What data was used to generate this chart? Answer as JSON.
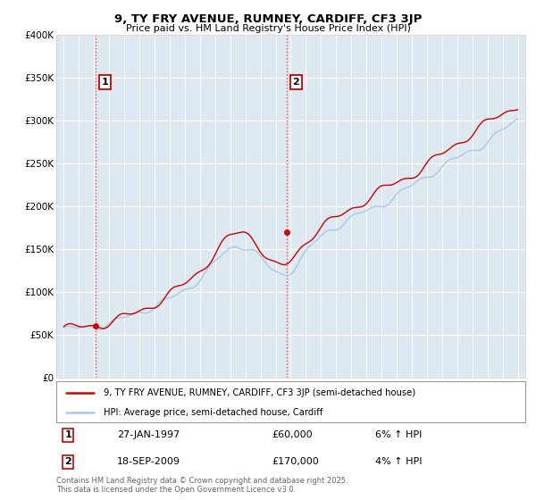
{
  "title": "9, TY FRY AVENUE, RUMNEY, CARDIFF, CF3 3JP",
  "subtitle": "Price paid vs. HM Land Registry's House Price Index (HPI)",
  "legend_line1": "9, TY FRY AVENUE, RUMNEY, CARDIFF, CF3 3JP (semi-detached house)",
  "legend_line2": "HPI: Average price, semi-detached house, Cardiff",
  "footer": "Contains HM Land Registry data © Crown copyright and database right 2025.\nThis data is licensed under the Open Government Licence v3.0.",
  "hpi_color": "#aac8e8",
  "price_color": "#cc0000",
  "dashed_line_color": "#ee3333",
  "plot_bg_color": "#dde8f0",
  "ylim": [
    0,
    400000
  ],
  "yticks": [
    0,
    50000,
    100000,
    150000,
    200000,
    250000,
    300000,
    350000,
    400000
  ],
  "ytick_labels": [
    "£0",
    "£50K",
    "£100K",
    "£150K",
    "£200K",
    "£250K",
    "£300K",
    "£350K",
    "£400K"
  ],
  "t1": 1997.08,
  "t2": 2009.72,
  "p1": 60000,
  "p2": 170000,
  "ann1_date": "27-JAN-1997",
  "ann1_price": "£60,000",
  "ann1_hpi": "6% ↑ HPI",
  "ann2_date": "18-SEP-2009",
  "ann2_price": "£170,000",
  "ann2_hpi": "4% ↑ HPI"
}
